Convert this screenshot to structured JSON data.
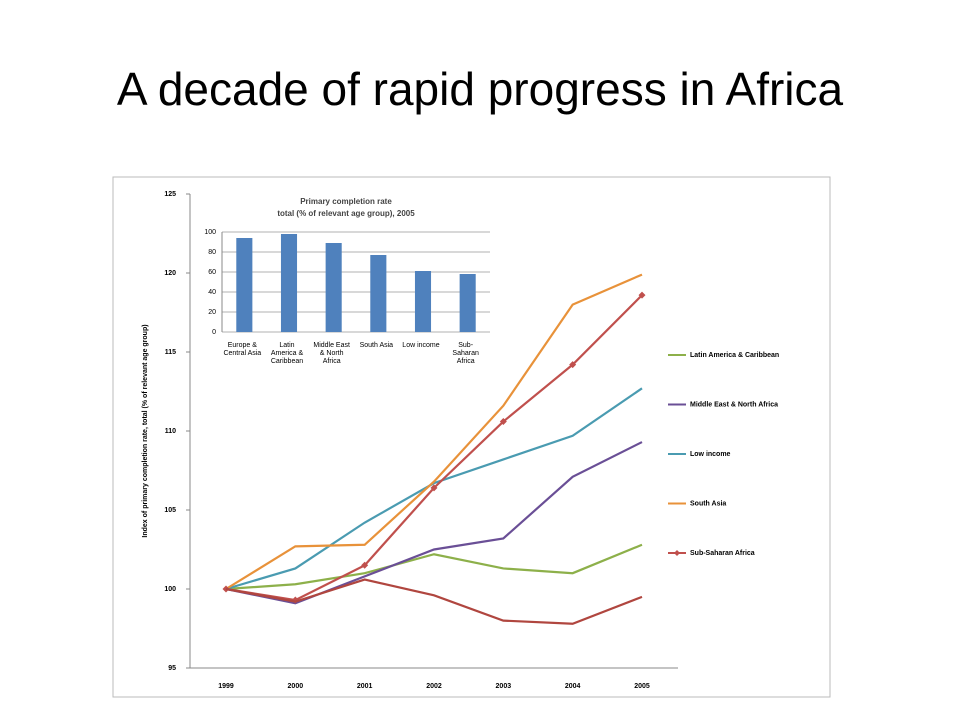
{
  "title": "A decade of rapid progress in Africa",
  "chart_data": [
    {
      "type": "line",
      "ylabel": "Index of primary completion rate, total (% of relevant age group)",
      "categories": [
        "1999",
        "2000",
        "2001",
        "2002",
        "2003",
        "2004",
        "2005"
      ],
      "ylim": [
        95,
        125
      ],
      "yticks": [
        95,
        100,
        105,
        110,
        115,
        120,
        125
      ],
      "grid": false,
      "legend": "right",
      "series": [
        {
          "name": "Latin America & Caribbean",
          "color": "#8db04a",
          "values": [
            100,
            100.3,
            101.0,
            102.2,
            101.3,
            101.0,
            102.8
          ]
        },
        {
          "name": "Middle East & North Africa",
          "color": "#6a4f96",
          "values": [
            100,
            99.1,
            100.8,
            102.5,
            103.2,
            107.1,
            109.3
          ]
        },
        {
          "name": "Low income",
          "color": "#4a9bb1",
          "values": [
            100,
            101.3,
            104.2,
            106.7,
            108.2,
            109.7,
            112.7
          ]
        },
        {
          "name": "South Asia",
          "color": "#e8923a",
          "values": [
            100,
            102.7,
            102.8,
            106.8,
            111.6,
            118.0,
            119.9
          ]
        },
        {
          "name": "Sub-Saharan Africa",
          "color": "#c0504d",
          "marker": "diamond",
          "values": [
            100,
            99.3,
            101.5,
            106.4,
            110.6,
            114.2,
            118.6
          ]
        },
        {
          "color": "#b0463f",
          "values": [
            100,
            99.2,
            100.6,
            99.6,
            98.0,
            97.8,
            99.5
          ]
        }
      ]
    },
    {
      "type": "bar",
      "title": "Primary completion rate",
      "subtitle": "total (% of relevant age group), 2005",
      "categories": [
        "Europe & Central Asia",
        "Latin America & Caribbean",
        "Middle East & North Africa",
        "South Asia",
        "Low income",
        "Sub-Saharan Africa"
      ],
      "values": [
        94,
        98,
        89,
        77,
        61,
        58
      ],
      "color": "#4f81bd",
      "ylim": [
        0,
        100
      ],
      "yticks": [
        0,
        20,
        40,
        60,
        80,
        100
      ],
      "grid": true
    }
  ]
}
